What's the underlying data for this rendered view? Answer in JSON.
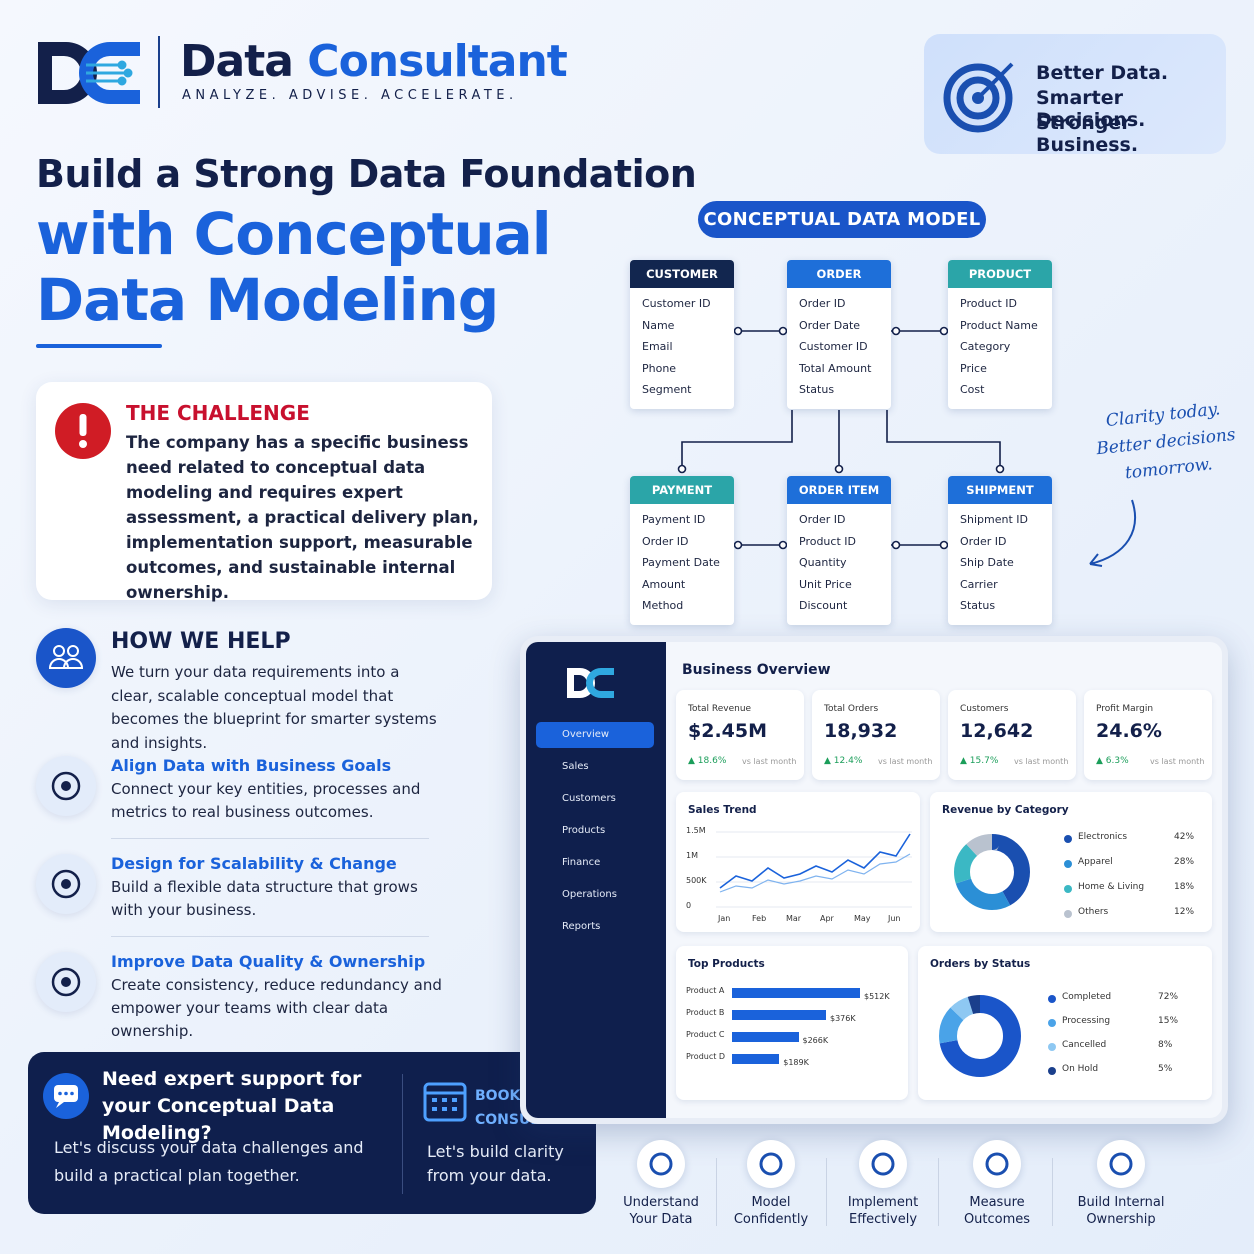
{
  "header": {
    "brand_1": "Data",
    "brand_2": "Consultant",
    "tagline": "ANALYZE. ADVISE. ACCELERATE."
  },
  "badge": {
    "lines": [
      "Better Data.",
      "Smarter Decisions.",
      "Stronger Business."
    ]
  },
  "hero": {
    "line_1": "Build a Strong Data Foundation",
    "line_2": "with Conceptual",
    "line_3": "Data Modeling"
  },
  "challenge": {
    "title": "THE CHALLENGE",
    "text": "The company has a specific business need related to conceptual data modeling and requires expert assessment, a practical delivery plan, implementation support, measurable outcomes, and sustainable internal ownership."
  },
  "how_we_help": {
    "title": "HOW WE HELP",
    "text": "We turn your data requirements into a clear, scalable conceptual model that becomes the blueprint for smarter systems and insights.",
    "items": [
      {
        "title": "Align Data with Business Goals",
        "text": "Connect your key entities, processes and metrics to real business outcomes."
      },
      {
        "title": "Design for Scalability & Change",
        "text": "Build a flexible data structure that grows with your business."
      },
      {
        "title": "Improve Data Quality & Ownership",
        "text": "Create consistency, reduce redundancy and empower your teams with clear data ownership."
      }
    ]
  },
  "cta": {
    "title": "Need expert support for your Conceptual Data Modeling?",
    "text": "Let's discuss your data challenges and build a practical plan together.",
    "button": "BOOK A CONSULTATION",
    "subtext": "Let's build clarity from your data."
  },
  "model": {
    "title": "CONCEPTUAL DATA MODEL",
    "entities": [
      {
        "name": "CUSTOMER",
        "fields": [
          "Customer ID",
          "Name",
          "Email",
          "Phone",
          "Segment"
        ]
      },
      {
        "name": "ORDER",
        "fields": [
          "Order ID",
          "Order Date",
          "Customer ID",
          "Total Amount",
          "Status"
        ]
      },
      {
        "name": "PRODUCT",
        "fields": [
          "Product ID",
          "Product Name",
          "Category",
          "Price",
          "Cost"
        ]
      },
      {
        "name": "PAYMENT",
        "fields": [
          "Payment ID",
          "Order ID",
          "Payment Date",
          "Amount",
          "Method"
        ]
      },
      {
        "name": "ORDER ITEM",
        "fields": [
          "Order ID",
          "Product ID",
          "Quantity",
          "Unit Price",
          "Discount"
        ]
      },
      {
        "name": "SHIPMENT",
        "fields": [
          "Shipment ID",
          "Order ID",
          "Ship Date",
          "Carrier",
          "Status"
        ]
      }
    ]
  },
  "note": "Clarity today. Better decisions tomorrow.",
  "dashboard": {
    "title": "Business Overview",
    "nav": [
      "Overview",
      "Sales",
      "Customers",
      "Products",
      "Finance",
      "Operations",
      "Reports"
    ],
    "kpis": [
      {
        "label": "Total Revenue",
        "value": "$2.45M",
        "change": "18.6%",
        "note": "vs last month"
      },
      {
        "label": "Total Orders",
        "value": "18,932",
        "change": "12.4%",
        "note": "vs last month"
      },
      {
        "label": "Customers",
        "value": "12,642",
        "change": "15.7%",
        "note": "vs last month"
      },
      {
        "label": "Profit Margin",
        "value": "24.6%",
        "change": "6.3%",
        "note": "vs last month"
      }
    ],
    "sales_trend": {
      "title": "Sales Trend",
      "yticks": [
        "1.5M",
        "1M",
        "500K",
        "0"
      ],
      "months": [
        "Jan",
        "Feb",
        "Mar",
        "Apr",
        "May",
        "Jun"
      ]
    },
    "revenue_by_category": {
      "title": "Revenue by Category",
      "categories": [
        "Electronics",
        "Apparel",
        "Home & Living",
        "Others"
      ],
      "values": [
        42,
        28,
        18,
        12
      ],
      "value_labels": [
        "42%",
        "28%",
        "18%",
        "12%"
      ],
      "colors": [
        "#1a4fb0",
        "#2b8fd6",
        "#3bb8c4",
        "#b9c2cf"
      ]
    },
    "top_products": {
      "title": "Top Products",
      "categories": [
        "Product A",
        "Product B",
        "Product C",
        "Product D"
      ],
      "values": [
        512,
        376,
        266,
        189
      ],
      "value_labels": [
        "$512K",
        "$376K",
        "$266K",
        "$189K"
      ],
      "color": "#1a62db"
    },
    "orders_by_status": {
      "title": "Orders by Status",
      "categories": [
        "Completed",
        "Processing",
        "Cancelled",
        "On Hold"
      ],
      "values": [
        72,
        15,
        8,
        5
      ],
      "value_labels": [
        "72%",
        "15%",
        "8%",
        "5%"
      ],
      "colors": [
        "#1a55c9",
        "#4aa3e8",
        "#8ec8f2",
        "#1a3f8c"
      ]
    }
  },
  "steps": [
    "Understand Your Data",
    "Model Confidently",
    "Implement Effectively",
    "Measure Outcomes",
    "Build Internal Ownership"
  ]
}
